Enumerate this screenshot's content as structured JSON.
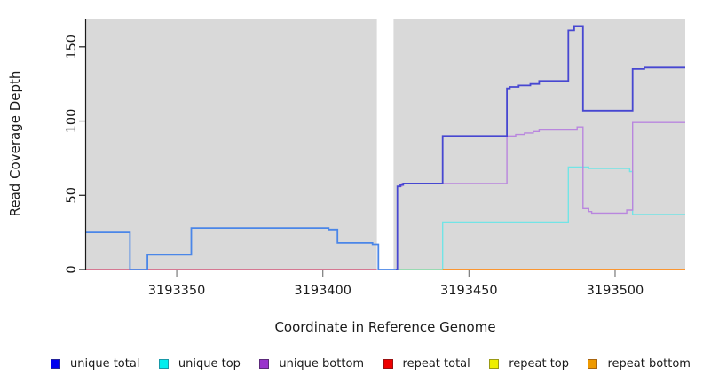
{
  "chart_data": {
    "type": "line",
    "subtype": "step",
    "title": "",
    "xlabel": "Coordinate in Reference Genome",
    "ylabel": "Read Coverage Depth",
    "xlim": [
      3193319,
      3193524
    ],
    "ylim": [
      0,
      169
    ],
    "x_ticks": [
      {
        "value": 3193350,
        "label": "3193350"
      },
      {
        "value": 3193400,
        "label": "3193400"
      },
      {
        "value": 3193450,
        "label": "3193450"
      },
      {
        "value": 3193500,
        "label": "3193500"
      }
    ],
    "y_ticks": [
      {
        "value": 0,
        "label": "0"
      },
      {
        "value": 50,
        "label": "50"
      },
      {
        "value": 100,
        "label": "100"
      },
      {
        "value": 150,
        "label": "150"
      }
    ],
    "grid": "off",
    "panel_bg": "#d9d9d9",
    "axis_color": "#1a1a1a",
    "masked_region_x": [
      3193418.5,
      3193424.2
    ],
    "series": [
      {
        "id": "repeat-total",
        "name": "repeat total",
        "color": "#d4587a",
        "width": 1.4,
        "steps": [
          [
            3193319,
            0
          ]
        ],
        "end": 3193418.5
      },
      {
        "id": "unique-top",
        "name": "unique top",
        "color": "#72e4e6",
        "width": 1.4,
        "steps": [
          [
            3193425,
            0
          ],
          [
            3193441,
            32
          ],
          [
            3193484,
            69
          ],
          [
            3193491,
            68
          ],
          [
            3193505,
            66
          ],
          [
            3193506,
            37
          ]
        ],
        "end": 3193524
      },
      {
        "id": "repeat-top",
        "name": "repeat top",
        "color": "#93d9a4",
        "width": 1.4,
        "steps": [
          [
            3193425,
            0
          ]
        ],
        "end": 3193441
      },
      {
        "id": "repeat-bottom",
        "name": "repeat bottom",
        "color": "#ff8c1a",
        "width": 1.7,
        "steps": [
          [
            3193441,
            0
          ]
        ],
        "end": 3193524
      },
      {
        "id": "unique-bottom",
        "name": "unique bottom",
        "color": "#b986de",
        "width": 1.4,
        "steps": [
          [
            3193425,
            0
          ],
          [
            3193425.5,
            56
          ],
          [
            3193427,
            58
          ],
          [
            3193463,
            90
          ],
          [
            3193466,
            91
          ],
          [
            3193469,
            92
          ],
          [
            3193472,
            93
          ],
          [
            3193474,
            94
          ],
          [
            3193487,
            96
          ],
          [
            3193489,
            41
          ],
          [
            3193491,
            39
          ],
          [
            3193492,
            38
          ],
          [
            3193504,
            40
          ],
          [
            3193506,
            99
          ]
        ],
        "end": 3193524
      },
      {
        "id": "unique-total-left",
        "name": "unique total (left of gap)",
        "color": "#4a86e8",
        "width": 1.8,
        "steps": [
          [
            3193319,
            25
          ],
          [
            3193334,
            0
          ],
          [
            3193340,
            10
          ],
          [
            3193355,
            28
          ],
          [
            3193402,
            27
          ],
          [
            3193405,
            18
          ],
          [
            3193417,
            17
          ],
          [
            3193419,
            0
          ]
        ],
        "end": 3193425
      },
      {
        "id": "unique-total-right",
        "name": "unique total (right of gap)",
        "color": "#4747d1",
        "width": 1.8,
        "steps": [
          [
            3193425,
            0
          ],
          [
            3193425.5,
            56
          ],
          [
            3193426.5,
            57
          ],
          [
            3193427.5,
            58
          ],
          [
            3193441,
            90
          ],
          [
            3193463,
            122
          ],
          [
            3193464,
            123
          ],
          [
            3193467,
            124
          ],
          [
            3193471,
            125
          ],
          [
            3193474,
            127
          ],
          [
            3193484,
            161
          ],
          [
            3193486,
            164
          ],
          [
            3193489,
            107
          ],
          [
            3193506,
            135
          ],
          [
            3193510,
            136
          ]
        ],
        "end": 3193524
      }
    ],
    "legend": {
      "position": "bottom",
      "entries": [
        {
          "label": "unique total",
          "color": "#0000ee",
          "border": "#22229a"
        },
        {
          "label": "unique top",
          "color": "#00eeee",
          "border": "#1899a8"
        },
        {
          "label": "unique bottom",
          "color": "#9933cc",
          "border": "#5c2a7a"
        },
        {
          "label": "repeat total",
          "color": "#ee0000",
          "border": "#991111"
        },
        {
          "label": "repeat top",
          "color": "#eeee00",
          "border": "#9a9a15"
        },
        {
          "label": "repeat bottom",
          "color": "#ee9900",
          "border": "#a86510"
        }
      ]
    }
  }
}
